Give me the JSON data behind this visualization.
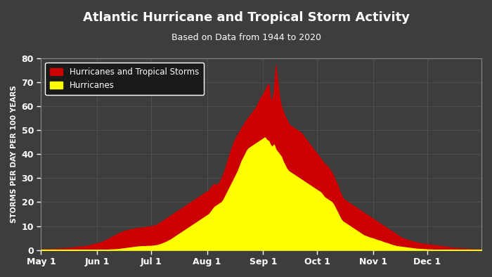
{
  "title": "Atlantic Hurricane and Tropical Storm Activity",
  "subtitle": "Based on Data from 1944 to 2020",
  "ylabel": "STORMS PER DAY PER 100 YEARS",
  "ylim": [
    0,
    80
  ],
  "yticks": [
    0,
    10,
    20,
    30,
    40,
    50,
    60,
    70,
    80
  ],
  "bg_color": "#3d3d3d",
  "plot_bg_color": "#3d3d3d",
  "grid_color": "#555555",
  "title_color": "#ffffff",
  "tick_color": "#ffffff",
  "legend_label_ts": "Hurricanes and Tropical Storms",
  "legend_label_h": "Hurricanes",
  "ts_color": "#cc0000",
  "h_color": "#ffff00",
  "x_tick_labels": [
    "May 1",
    "Jun 1",
    "Jul 1",
    "Aug 1",
    "Sep 1",
    "Oct 1",
    "Nov 1",
    "Dec 1"
  ],
  "days_per_month": [
    31,
    30,
    31,
    31,
    30,
    31,
    30,
    31
  ],
  "total_storm_data": [
    0.3,
    0.3,
    0.3,
    0.4,
    0.4,
    0.4,
    0.5,
    0.5,
    0.5,
    0.6,
    0.6,
    0.7,
    0.7,
    0.8,
    0.8,
    0.9,
    1.0,
    1.0,
    1.1,
    1.2,
    1.3,
    1.4,
    1.4,
    1.5,
    1.6,
    1.7,
    1.8,
    2.0,
    2.2,
    2.4,
    2.6,
    2.8,
    3.0,
    3.2,
    3.5,
    3.8,
    4.2,
    4.6,
    5.0,
    5.4,
    5.8,
    6.2,
    6.6,
    7.0,
    7.3,
    7.6,
    7.9,
    8.1,
    8.3,
    8.5,
    8.7,
    8.8,
    9.0,
    9.1,
    9.2,
    9.3,
    9.4,
    9.5,
    9.6,
    9.7,
    9.8,
    9.9,
    10.1,
    10.3,
    10.6,
    11.0,
    11.5,
    12.0,
    12.5,
    13.0,
    13.5,
    14.0,
    14.5,
    15.0,
    15.5,
    16.0,
    16.5,
    17.0,
    17.5,
    18.0,
    18.5,
    19.0,
    19.5,
    20.0,
    20.5,
    21.0,
    21.5,
    22.0,
    22.5,
    23.0,
    23.5,
    24.0,
    24.5,
    25.0,
    26.0,
    27.0,
    27.5,
    27.2,
    27.5,
    28.5,
    30.0,
    32.0,
    34.0,
    36.5,
    39.0,
    41.5,
    43.5,
    45.5,
    47.0,
    48.5,
    49.5,
    51.0,
    52.0,
    53.5,
    54.5,
    55.5,
    56.5,
    57.5,
    58.5,
    59.5,
    61.0,
    62.5,
    64.0,
    65.0,
    66.5,
    68.0,
    69.5,
    63.0,
    62.5,
    66.0,
    77.0,
    70.0,
    64.0,
    60.0,
    58.0,
    56.0,
    54.5,
    53.0,
    52.0,
    51.5,
    51.0,
    50.5,
    50.0,
    49.5,
    49.0,
    48.0,
    47.0,
    46.0,
    45.0,
    44.0,
    43.0,
    42.0,
    41.0,
    40.0,
    39.0,
    38.0,
    37.0,
    36.0,
    35.5,
    34.5,
    33.5,
    32.5,
    31.0,
    29.0,
    27.5,
    25.5,
    23.5,
    22.0,
    21.0,
    20.5,
    20.0,
    19.5,
    19.0,
    18.5,
    18.0,
    17.5,
    17.0,
    16.5,
    16.0,
    15.5,
    15.0,
    14.5,
    14.0,
    13.5,
    13.0,
    12.5,
    12.0,
    11.5,
    11.0,
    10.5,
    10.0,
    9.5,
    9.0,
    8.5,
    8.0,
    7.5,
    7.0,
    6.5,
    6.0,
    5.5,
    5.0,
    4.8,
    4.5,
    4.2,
    4.0,
    3.8,
    3.6,
    3.4,
    3.2,
    3.0,
    2.8,
    2.7,
    2.6,
    2.5,
    2.4,
    2.3,
    2.2,
    2.1,
    2.0,
    1.9,
    1.8,
    1.7,
    1.6,
    1.5,
    1.4,
    1.3,
    1.2,
    1.1,
    1.0,
    0.9,
    0.8,
    0.8,
    0.7,
    0.7,
    0.6,
    0.6,
    0.5,
    0.5,
    0.4,
    0.4,
    0.3,
    0.3,
    0.3,
    0.3,
    0.2,
    0.2,
    0.2,
    0.2
  ],
  "hurricane_data": [
    0.0,
    0.0,
    0.0,
    0.0,
    0.0,
    0.0,
    0.0,
    0.0,
    0.0,
    0.0,
    0.0,
    0.0,
    0.0,
    0.0,
    0.0,
    0.0,
    0.0,
    0.0,
    0.0,
    0.0,
    0.0,
    0.0,
    0.0,
    0.0,
    0.0,
    0.0,
    0.0,
    0.0,
    0.0,
    0.0,
    0.0,
    0.0,
    0.0,
    0.0,
    0.0,
    0.1,
    0.1,
    0.1,
    0.2,
    0.2,
    0.2,
    0.3,
    0.3,
    0.4,
    0.5,
    0.6,
    0.7,
    0.8,
    0.9,
    1.0,
    1.1,
    1.2,
    1.3,
    1.4,
    1.5,
    1.5,
    1.6,
    1.6,
    1.6,
    1.7,
    1.7,
    1.7,
    1.8,
    1.9,
    2.0,
    2.2,
    2.4,
    2.7,
    3.0,
    3.3,
    3.7,
    4.1,
    4.5,
    5.0,
    5.5,
    6.0,
    6.5,
    7.0,
    7.5,
    8.0,
    8.5,
    9.0,
    9.5,
    10.0,
    10.5,
    11.0,
    11.5,
    12.0,
    12.5,
    13.0,
    13.5,
    14.0,
    14.5,
    15.0,
    16.0,
    17.0,
    18.0,
    18.5,
    19.0,
    19.5,
    20.0,
    21.0,
    22.5,
    24.0,
    25.5,
    27.0,
    28.5,
    30.0,
    31.5,
    33.0,
    35.0,
    37.0,
    38.5,
    40.0,
    41.5,
    42.5,
    43.0,
    43.5,
    44.0,
    44.5,
    45.0,
    45.5,
    46.0,
    46.5,
    47.0,
    46.0,
    45.5,
    44.0,
    43.0,
    44.0,
    42.0,
    41.0,
    40.0,
    39.0,
    37.0,
    35.5,
    34.0,
    33.0,
    32.5,
    32.0,
    31.5,
    31.0,
    30.5,
    30.0,
    29.5,
    29.0,
    28.5,
    28.0,
    27.5,
    27.0,
    26.5,
    26.0,
    25.5,
    25.0,
    24.5,
    24.0,
    23.0,
    22.0,
    21.5,
    21.0,
    20.5,
    20.0,
    19.0,
    17.5,
    16.0,
    14.5,
    13.0,
    12.0,
    11.5,
    11.0,
    10.5,
    10.0,
    9.5,
    9.0,
    8.5,
    8.0,
    7.5,
    7.0,
    6.5,
    6.0,
    5.8,
    5.5,
    5.2,
    5.0,
    4.8,
    4.5,
    4.2,
    4.0,
    3.8,
    3.5,
    3.2,
    3.0,
    2.8,
    2.5,
    2.2,
    2.0,
    1.8,
    1.6,
    1.5,
    1.4,
    1.3,
    1.2,
    1.1,
    1.0,
    0.9,
    0.8,
    0.7,
    0.6,
    0.5,
    0.5,
    0.4,
    0.4,
    0.3,
    0.3,
    0.2,
    0.2,
    0.2,
    0.1,
    0.1,
    0.1,
    0.1,
    0.1,
    0.0,
    0.0,
    0.0,
    0.0,
    0.0,
    0.0,
    0.0,
    0.0,
    0.0,
    0.0,
    0.0,
    0.0,
    0.0,
    0.0,
    0.0,
    0.0,
    0.0,
    0.0,
    0.0,
    0.0,
    0.0,
    0.0,
    0.0,
    0.0,
    0.0,
    0.0
  ]
}
